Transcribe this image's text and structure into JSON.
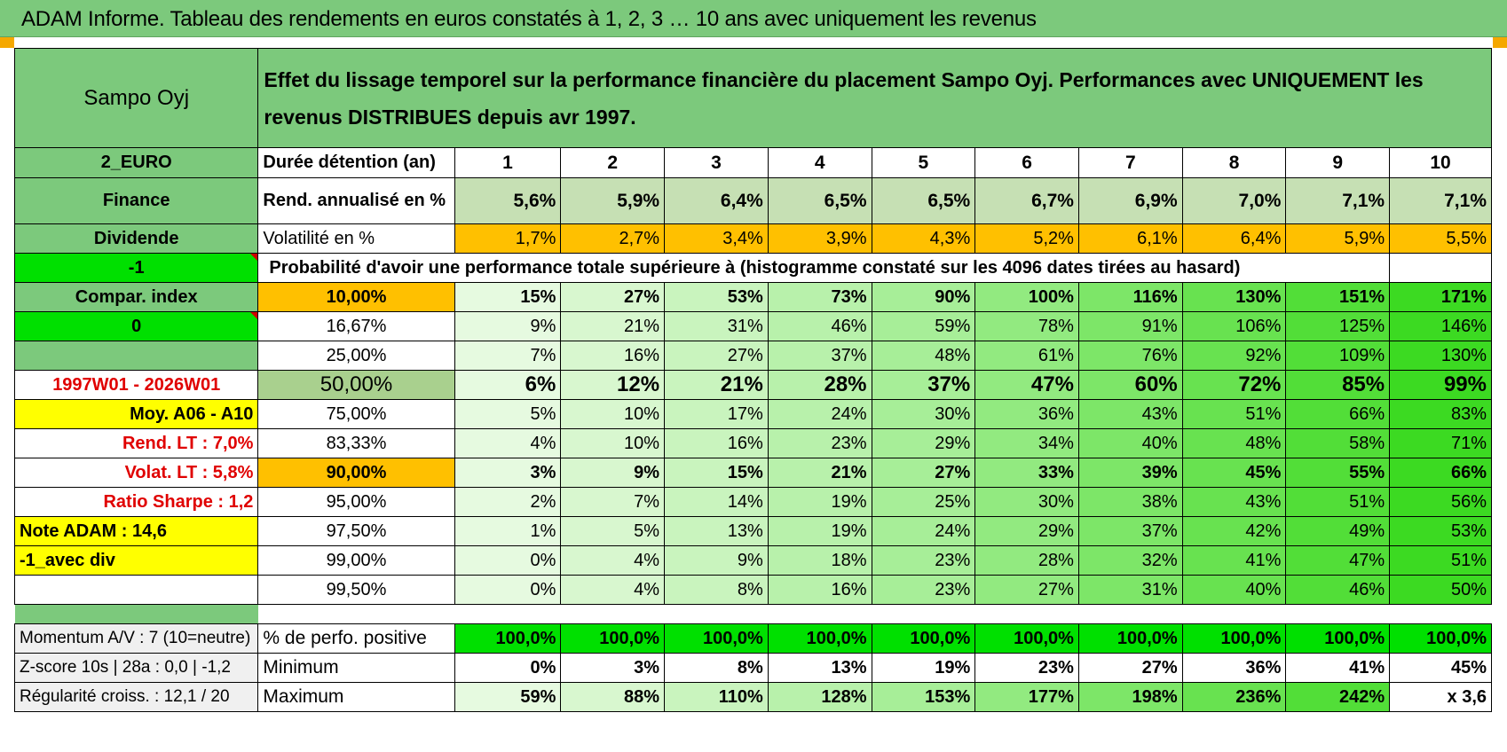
{
  "title": "ADAM Informe. Tableau des rendements en euros constatés à 1, 2, 3 … 10 ans avec uniquement les revenus",
  "header": {
    "name": "Sampo Oyj",
    "description": "Effet du lissage temporel sur la performance financière du placement Sampo Oyj. Performances avec UNIQUEMENT les revenus DISTRIBUES depuis avr 1997."
  },
  "left": {
    "currency": "2_EURO",
    "sector": "Finance",
    "type": "Dividende",
    "param1": "-1",
    "compar": "Compar. index",
    "param2": "0",
    "period": "1997W01 - 2026W01",
    "moy": "Moy. A06 - A10",
    "rend_lt": "Rend. LT :    7,0%",
    "volat_lt": "Volat. LT :    5,8%",
    "sharpe": "Ratio Sharpe :    1,2",
    "note": "Note ADAM : 14,6",
    "avec_div": "-1_avec div",
    "momentum": "Momentum A/V : 7 (10=neutre)",
    "zscore": "Z-score 10s | 28a : 0,0 | -1,2",
    "regularite": "Régularité croiss. : 12,1 / 20"
  },
  "years_label": "Durée détention (an)",
  "years": [
    "1",
    "2",
    "3",
    "4",
    "5",
    "6",
    "7",
    "8",
    "9",
    "10"
  ],
  "rend": {
    "label": "Rend. annualisé en %",
    "values": [
      "5,6%",
      "5,9%",
      "6,4%",
      "6,5%",
      "6,5%",
      "6,7%",
      "6,9%",
      "7,0%",
      "7,1%",
      "7,1%"
    ]
  },
  "vol": {
    "label": "Volatilité en %",
    "values": [
      "1,7%",
      "2,7%",
      "3,4%",
      "3,9%",
      "4,3%",
      "5,2%",
      "6,1%",
      "6,4%",
      "5,9%",
      "5,5%"
    ]
  },
  "prob_title": "Probabilité d'avoir une performance totale supérieure à (histogramme constaté sur les 4096 dates tirées au hasard)",
  "prob_rows": [
    {
      "pct": "10,00%",
      "values": [
        "15%",
        "27%",
        "53%",
        "73%",
        "90%",
        "100%",
        "116%",
        "130%",
        "151%",
        "171%"
      ]
    },
    {
      "pct": "16,67%",
      "values": [
        "9%",
        "21%",
        "31%",
        "46%",
        "59%",
        "78%",
        "91%",
        "106%",
        "125%",
        "146%"
      ]
    },
    {
      "pct": "25,00%",
      "values": [
        "7%",
        "16%",
        "27%",
        "37%",
        "48%",
        "61%",
        "76%",
        "92%",
        "109%",
        "130%"
      ]
    },
    {
      "pct": "50,00%",
      "values": [
        "6%",
        "12%",
        "21%",
        "28%",
        "37%",
        "47%",
        "60%",
        "72%",
        "85%",
        "99%"
      ]
    },
    {
      "pct": "75,00%",
      "values": [
        "5%",
        "10%",
        "17%",
        "24%",
        "30%",
        "36%",
        "43%",
        "51%",
        "66%",
        "83%"
      ]
    },
    {
      "pct": "83,33%",
      "values": [
        "4%",
        "10%",
        "16%",
        "23%",
        "29%",
        "34%",
        "40%",
        "48%",
        "58%",
        "71%"
      ]
    },
    {
      "pct": "90,00%",
      "values": [
        "3%",
        "9%",
        "15%",
        "21%",
        "27%",
        "33%",
        "39%",
        "45%",
        "55%",
        "66%"
      ]
    },
    {
      "pct": "95,00%",
      "values": [
        "2%",
        "7%",
        "14%",
        "19%",
        "25%",
        "30%",
        "38%",
        "43%",
        "51%",
        "56%"
      ]
    },
    {
      "pct": "97,50%",
      "values": [
        "1%",
        "5%",
        "13%",
        "19%",
        "24%",
        "29%",
        "37%",
        "42%",
        "49%",
        "53%"
      ]
    },
    {
      "pct": "99,00%",
      "values": [
        "0%",
        "4%",
        "9%",
        "18%",
        "23%",
        "28%",
        "32%",
        "41%",
        "47%",
        "51%"
      ]
    },
    {
      "pct": "99,50%",
      "values": [
        "0%",
        "4%",
        "8%",
        "16%",
        "23%",
        "27%",
        "31%",
        "40%",
        "46%",
        "50%"
      ]
    }
  ],
  "positive": {
    "label": "% de perfo. positive",
    "values": [
      "100,0%",
      "100,0%",
      "100,0%",
      "100,0%",
      "100,0%",
      "100,0%",
      "100,0%",
      "100,0%",
      "100,0%",
      "100,0%"
    ]
  },
  "minimum": {
    "label": "Minimum",
    "values": [
      "0%",
      "3%",
      "8%",
      "13%",
      "19%",
      "23%",
      "27%",
      "36%",
      "41%",
      "45%"
    ]
  },
  "maximum": {
    "label": "Maximum",
    "values": [
      "59%",
      "88%",
      "110%",
      "128%",
      "153%",
      "177%",
      "198%",
      "236%",
      "242%",
      "x 3,6"
    ]
  },
  "colors": {
    "header_green": "#7cc97c",
    "bright_green": "#00e000",
    "orange": "#ffc000",
    "yellow": "#ffff00",
    "red_text": "#e00000"
  }
}
